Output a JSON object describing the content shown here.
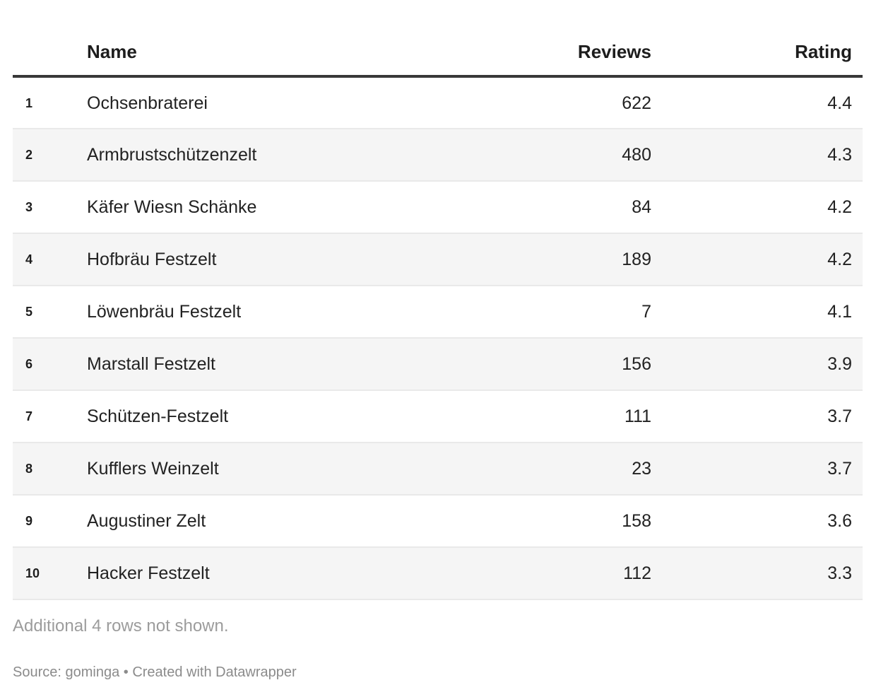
{
  "chart_data": {
    "type": "table",
    "columns": [
      "Name",
      "Reviews",
      "Rating"
    ],
    "rows": [
      {
        "rank": "1",
        "name": "Ochsenbraterei",
        "reviews": "622",
        "rating": "4.4"
      },
      {
        "rank": "2",
        "name": "Armbrustschützenzelt",
        "reviews": "480",
        "rating": "4.3"
      },
      {
        "rank": "3",
        "name": "Käfer Wiesn Schänke",
        "reviews": "84",
        "rating": "4.2"
      },
      {
        "rank": "4",
        "name": "Hofbräu Festzelt",
        "reviews": "189",
        "rating": "4.2"
      },
      {
        "rank": "5",
        "name": "Löwenbräu Festzelt",
        "reviews": "7",
        "rating": "4.1"
      },
      {
        "rank": "6",
        "name": "Marstall Festzelt",
        "reviews": "156",
        "rating": "3.9"
      },
      {
        "rank": "7",
        "name": "Schützen-Festzelt",
        "reviews": "111",
        "rating": "3.7"
      },
      {
        "rank": "8",
        "name": "Kufflers Weinzelt",
        "reviews": "23",
        "rating": "3.7"
      },
      {
        "rank": "9",
        "name": "Augustiner Zelt",
        "reviews": "158",
        "rating": "3.6"
      },
      {
        "rank": "10",
        "name": "Hacker Festzelt",
        "reviews": "112",
        "rating": "3.3"
      }
    ],
    "hidden_rows_note": "Additional 4 rows not shown.",
    "source": "Source: gominga • Created with Datawrapper",
    "layout_hints": {
      "zebra_striping": "even rows shaded",
      "reviews_alignment": "right",
      "rating_alignment": "right"
    }
  },
  "colors": {
    "header_text": "#1d1d1d",
    "body_text": "#222222",
    "header_rule": "#383838",
    "row_stripe": "#f5f5f5",
    "row_divider": "#e9e9e9",
    "note_text": "#9c9c9c",
    "source_text": "#8b8b8b"
  }
}
